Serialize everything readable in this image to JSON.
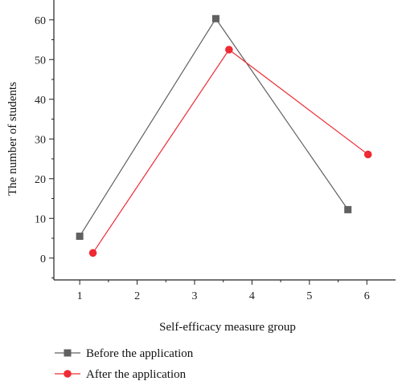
{
  "chart_data": {
    "type": "line",
    "title": "",
    "xlabel": "Self-efficacy measure group",
    "ylabel": "The number of students",
    "xlim": [
      0.55,
      6.5
    ],
    "ylim": [
      -5.5,
      65
    ],
    "x_ticks": [
      1,
      2,
      3,
      4,
      5,
      6
    ],
    "y_ticks": [
      0,
      10,
      20,
      30,
      40,
      50,
      60
    ],
    "grid": false,
    "legend_position": "bottom-left",
    "series": [
      {
        "name": "Before the application",
        "color": "#606060",
        "marker": "square",
        "x": [
          1.0,
          3.37,
          5.67
        ],
        "y": [
          5.5,
          60.3,
          12.2
        ]
      },
      {
        "name": "After the application",
        "color": "#ee2a33",
        "marker": "circle",
        "x": [
          1.23,
          3.6,
          6.02
        ],
        "y": [
          1.3,
          52.5,
          26.1
        ]
      }
    ]
  }
}
